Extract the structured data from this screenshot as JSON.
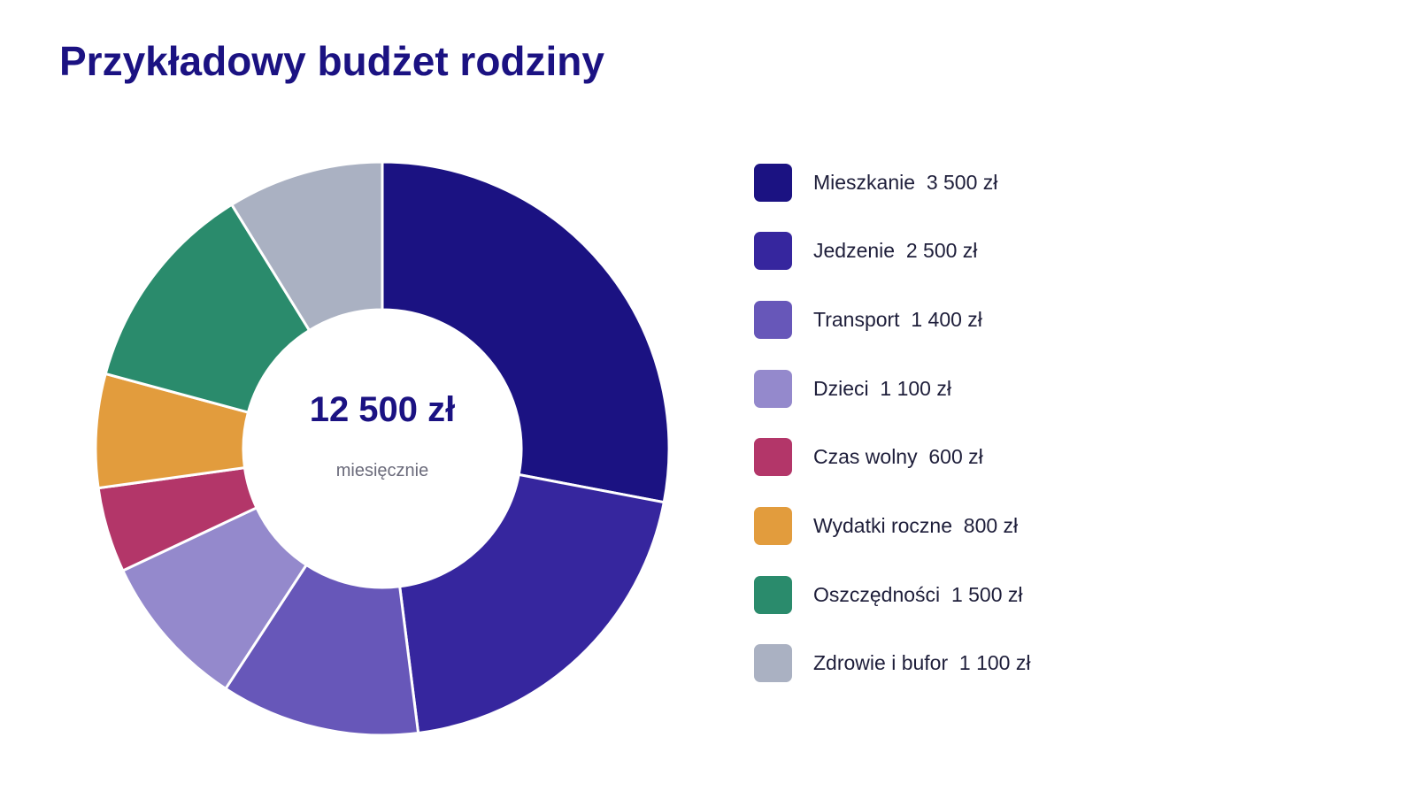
{
  "title": "Przykładowy budżet rodziny",
  "chart_data": {
    "type": "pie",
    "donut": true,
    "title": "Przykładowy budżet rodziny",
    "center_label": "12 500 zł",
    "center_sublabel": "miesięcznie",
    "legend_position": "right",
    "currency": "zł",
    "slices": [
      {
        "label": "Mieszkanie",
        "value": 3500,
        "value_label": "3 500 zł",
        "color": "#1b1282"
      },
      {
        "label": "Jedzenie",
        "value": 2500,
        "value_label": "2 500 zł",
        "color": "#36269e"
      },
      {
        "label": "Transport",
        "value": 1400,
        "value_label": "1 400 zł",
        "color": "#6757b9"
      },
      {
        "label": "Dzieci",
        "value": 1100,
        "value_label": "1 100 zł",
        "color": "#9489cc"
      },
      {
        "label": "Czas wolny",
        "value": 600,
        "value_label": "600 zł",
        "color": "#b33669"
      },
      {
        "label": "Wydatki roczne",
        "value": 800,
        "value_label": "800 zł",
        "color": "#e29c3d"
      },
      {
        "label": "Oszczędności",
        "value": 1500,
        "value_label": "1 500 zł",
        "color": "#2a8b6c"
      },
      {
        "label": "Zdrowie i bufor",
        "value": 1100,
        "value_label": "1 100 zł",
        "color": "#aab1c2"
      }
    ]
  }
}
